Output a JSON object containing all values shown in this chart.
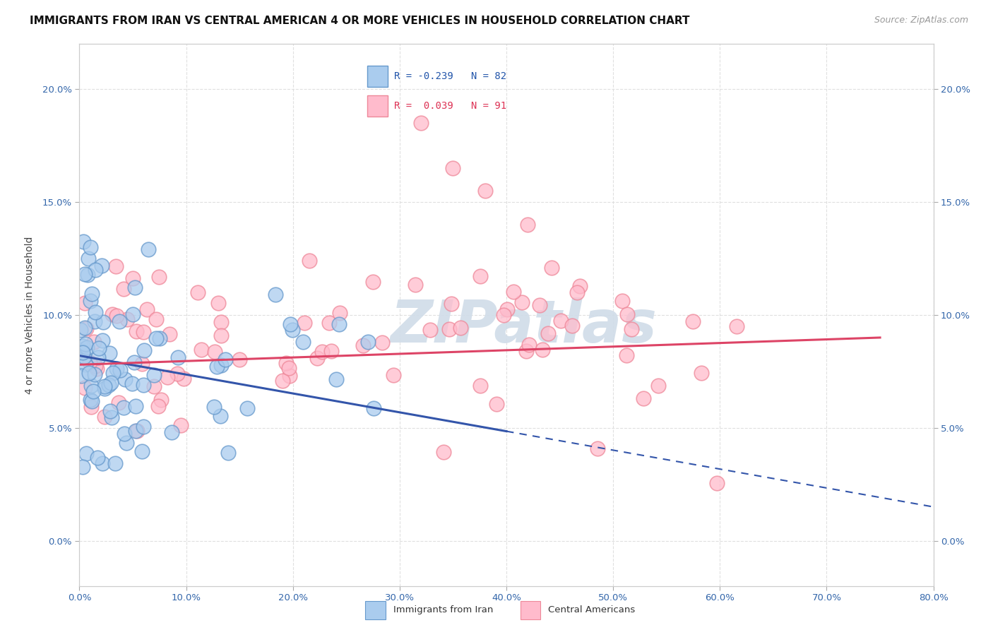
{
  "title": "IMMIGRANTS FROM IRAN VS CENTRAL AMERICAN 4 OR MORE VEHICLES IN HOUSEHOLD CORRELATION CHART",
  "source": "Source: ZipAtlas.com",
  "ylabel": "4 or more Vehicles in Household",
  "x_ticks": [
    0.0,
    10.0,
    20.0,
    30.0,
    40.0,
    50.0,
    60.0,
    70.0,
    80.0
  ],
  "y_ticks": [
    0.0,
    5.0,
    10.0,
    15.0,
    20.0
  ],
  "xlim": [
    0.0,
    80.0
  ],
  "ylim": [
    -2.0,
    22.0
  ],
  "iran_color": "#aaccee",
  "iran_edge": "#6699cc",
  "central_color": "#ffbbcc",
  "central_edge": "#ee8899",
  "iran_line_color": "#3355aa",
  "central_line_color": "#dd4466",
  "background_color": "#ffffff",
  "grid_color": "#dddddd",
  "watermark_color": "#d0dce8",
  "tick_color": "#3366aa",
  "iran_line_start_x": 0.0,
  "iran_line_start_y": 8.2,
  "iran_line_end_x": 80.0,
  "iran_line_end_y": 1.5,
  "iran_solid_end_x": 40.0,
  "central_line_start_x": 0.0,
  "central_line_start_y": 7.8,
  "central_line_end_x": 75.0,
  "central_line_end_y": 9.0,
  "title_fontsize": 11,
  "source_fontsize": 9,
  "axis_label_fontsize": 10,
  "tick_fontsize": 9.5
}
